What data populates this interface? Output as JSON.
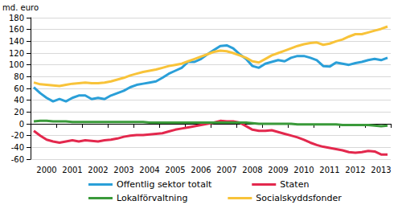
{
  "chart_data": {
    "type": "line",
    "y_label": "md. euro",
    "categories": [
      null,
      null,
      "2000",
      null,
      null,
      null,
      "2001",
      null,
      null,
      null,
      "2002",
      null,
      null,
      null,
      "2003",
      null,
      null,
      null,
      "2004",
      null,
      null,
      null,
      "2005",
      null,
      null,
      null,
      "2006",
      null,
      null,
      null,
      "2007",
      null,
      null,
      null,
      "2008",
      null,
      null,
      null,
      "2009",
      null,
      null,
      null,
      "2010",
      null,
      null,
      null,
      "2011",
      null,
      null,
      null,
      "2012",
      null,
      null,
      null,
      "2013",
      null
    ],
    "series": [
      {
        "name": "Offentlig sektor totalt",
        "color": "#2a9fd8",
        "values": [
          62,
          52,
          44,
          38,
          42,
          38,
          44,
          48,
          48,
          42,
          44,
          42,
          48,
          52,
          56,
          62,
          66,
          68,
          70,
          72,
          78,
          85,
          90,
          95,
          105,
          105,
          110,
          118,
          125,
          132,
          133,
          128,
          118,
          110,
          98,
          95,
          102,
          105,
          108,
          106,
          112,
          115,
          115,
          112,
          108,
          98,
          97,
          104,
          102,
          100,
          103,
          105,
          108,
          110,
          108,
          112
        ]
      },
      {
        "name": "Staten",
        "color": "#e3284d",
        "values": [
          -12,
          -20,
          -27,
          -30,
          -32,
          -30,
          -28,
          -30,
          -28,
          -29,
          -30,
          -28,
          -27,
          -25,
          -22,
          -20,
          -19,
          -19,
          -18,
          -17,
          -16,
          -13,
          -10,
          -8,
          -6,
          -4,
          -2,
          0,
          2,
          5,
          4,
          4,
          2,
          -4,
          -10,
          -12,
          -12,
          -11,
          -14,
          -17,
          -20,
          -23,
          -27,
          -32,
          -36,
          -39,
          -41,
          -43,
          -45,
          -48,
          -49,
          -48,
          -46,
          -47,
          -52,
          -52
        ]
      },
      {
        "name": "Lokalförvaltning",
        "color": "#3a9a3a",
        "values": [
          4,
          5,
          5,
          4,
          4,
          4,
          3,
          3,
          3,
          3,
          3,
          3,
          3,
          3,
          3,
          3,
          3,
          3,
          2,
          2,
          2,
          2,
          2,
          2,
          2,
          2,
          2,
          2,
          2,
          2,
          2,
          2,
          2,
          2,
          1,
          0,
          0,
          0,
          0,
          0,
          0,
          -1,
          -1,
          -1,
          -1,
          -1,
          -1,
          -1,
          -2,
          -2,
          -2,
          -2,
          -2,
          -3,
          -4,
          -3
        ]
      },
      {
        "name": "Socialskyddsfonder",
        "color": "#f8c339",
        "values": [
          70,
          67,
          66,
          65,
          64,
          66,
          68,
          69,
          70,
          69,
          69,
          70,
          72,
          75,
          78,
          82,
          85,
          88,
          90,
          92,
          95,
          98,
          100,
          102,
          106,
          110,
          114,
          118,
          122,
          124,
          123,
          120,
          116,
          112,
          106,
          104,
          110,
          116,
          120,
          124,
          128,
          132,
          135,
          137,
          138,
          134,
          136,
          140,
          143,
          148,
          152,
          152,
          155,
          158,
          161,
          165
        ]
      }
    ],
    "ylim": [
      -60,
      180
    ],
    "yticks": [
      -60,
      -40,
      -20,
      0,
      20,
      40,
      60,
      80,
      100,
      120,
      140,
      160,
      180
    ],
    "grid": true,
    "legend": "bottom"
  }
}
